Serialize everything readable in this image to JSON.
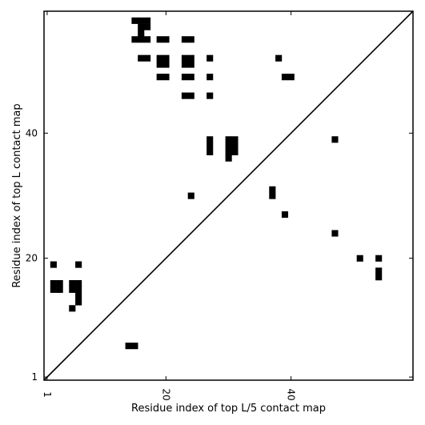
{
  "chart_data": {
    "type": "heatmap",
    "title": "",
    "xlabel": "Residue index of top L/5 contact map",
    "ylabel": "Residue index of top L contact map",
    "xlim": [
      0.5,
      59.5
    ],
    "ylim": [
      0.5,
      59.5
    ],
    "x_ticks": [
      1,
      20,
      40
    ],
    "x_tick_labels": [
      "1",
      "20",
      "40"
    ],
    "y_ticks": [
      1,
      20,
      40
    ],
    "y_tick_labels": [
      "1",
      "20",
      "40"
    ],
    "cell_color": "#000000",
    "background_color": "#ffffff",
    "diagonal_line": true,
    "grid": false,
    "contacts": [
      [
        15,
        58
      ],
      [
        16,
        58
      ],
      [
        17,
        58
      ],
      [
        16,
        57
      ],
      [
        17,
        57
      ],
      [
        16,
        56
      ],
      [
        15,
        55
      ],
      [
        16,
        55
      ],
      [
        17,
        55
      ],
      [
        19,
        55
      ],
      [
        20,
        55
      ],
      [
        23,
        55
      ],
      [
        24,
        55
      ],
      [
        38,
        52
      ],
      [
        16,
        52
      ],
      [
        17,
        52
      ],
      [
        19,
        52
      ],
      [
        20,
        52
      ],
      [
        23,
        52
      ],
      [
        24,
        52
      ],
      [
        27,
        52
      ],
      [
        19,
        51
      ],
      [
        20,
        51
      ],
      [
        23,
        51
      ],
      [
        24,
        51
      ],
      [
        19,
        49
      ],
      [
        20,
        49
      ],
      [
        23,
        49
      ],
      [
        24,
        49
      ],
      [
        27,
        49
      ],
      [
        39,
        49
      ],
      [
        40,
        49
      ],
      [
        23,
        46
      ],
      [
        24,
        46
      ],
      [
        27,
        46
      ],
      [
        27,
        39
      ],
      [
        30,
        39
      ],
      [
        31,
        39
      ],
      [
        47,
        39
      ],
      [
        27,
        38
      ],
      [
        30,
        38
      ],
      [
        31,
        38
      ],
      [
        27,
        37
      ],
      [
        30,
        37
      ],
      [
        31,
        37
      ],
      [
        30,
        36
      ],
      [
        37,
        31
      ],
      [
        37,
        30
      ],
      [
        24,
        30
      ],
      [
        39,
        27
      ],
      [
        47,
        24
      ],
      [
        51,
        20
      ],
      [
        54,
        20
      ],
      [
        2,
        19
      ],
      [
        6,
        19
      ],
      [
        54,
        18
      ],
      [
        54,
        17
      ],
      [
        2,
        16
      ],
      [
        3,
        16
      ],
      [
        5,
        16
      ],
      [
        6,
        16
      ],
      [
        2,
        15
      ],
      [
        3,
        15
      ],
      [
        5,
        15
      ],
      [
        6,
        15
      ],
      [
        6,
        14
      ],
      [
        6,
        13
      ],
      [
        5,
        12
      ],
      [
        14,
        6
      ],
      [
        15,
        6
      ]
    ]
  }
}
